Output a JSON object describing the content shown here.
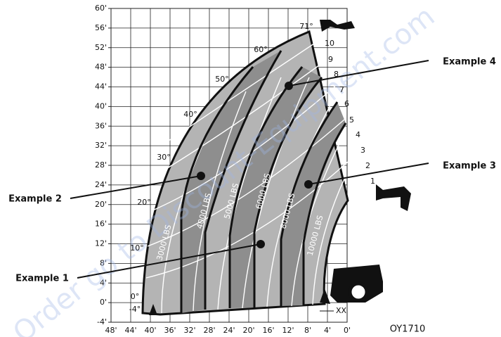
{
  "y_axis": {
    "labels": [
      "60'",
      "56'",
      "52'",
      "48'",
      "44'",
      "40'",
      "36'",
      "32'",
      "28'",
      "24'",
      "20'",
      "16'",
      "12'",
      "8'",
      "4'",
      "0'",
      "-4'"
    ]
  },
  "x_axis": {
    "labels": [
      "48'",
      "44'",
      "40'",
      "36'",
      "32'",
      "28'",
      "24'",
      "20'",
      "16'",
      "12'",
      "8'",
      "4'",
      "0'"
    ]
  },
  "angles": [
    "71°",
    "60°",
    "50°",
    "40°",
    "30°",
    "20°",
    "10°",
    "0°",
    "-4°"
  ],
  "extensions": [
    "10",
    "9",
    "8",
    "7",
    "6",
    "5",
    "4",
    "3",
    "2",
    "1"
  ],
  "loads": [
    "3000 LBS",
    "4000 LBS",
    "5000 LBS",
    "6000 LBS",
    "8000 LBS",
    "10000 LBS"
  ],
  "examples": [
    "Example 1",
    "Example 2",
    "Example 3",
    "Example 4"
  ],
  "frame_label": "XX",
  "code": "OY1710",
  "watermark": "Order go to Discount-Equipment.com"
}
